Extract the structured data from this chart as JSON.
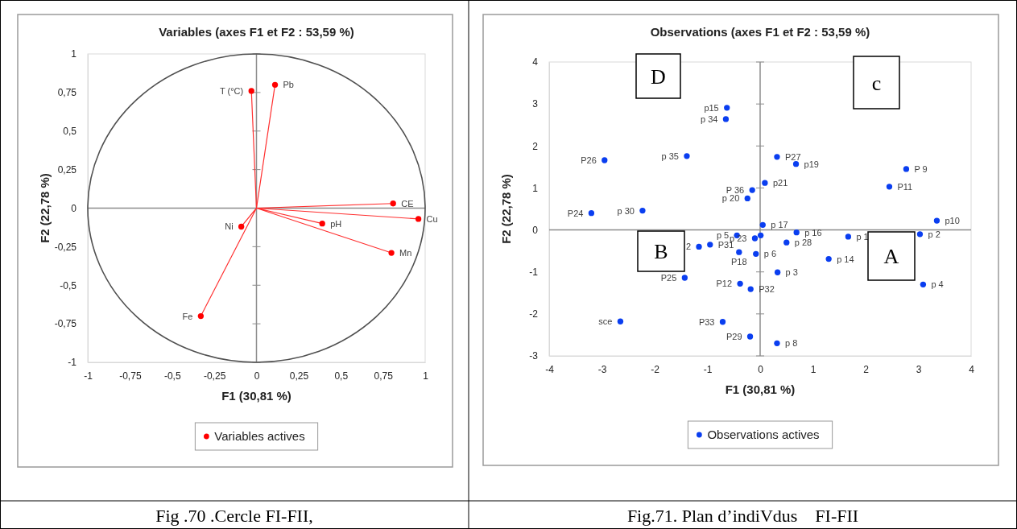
{
  "chart_data": [
    {
      "type": "scatter",
      "title": "Variables (axes F1 et F2 : 53,59 %)",
      "xlabel": "F1 (30,81 %)",
      "ylabel": "F2 (22,78 %)",
      "xlim": [
        -1,
        1
      ],
      "ylim": [
        -1,
        1
      ],
      "xticks": [
        -1,
        {
          "value": -0.75,
          "label": "-0,75"
        },
        {
          "value": -0.5,
          "label": "-0,5"
        },
        {
          "value": -0.25,
          "label": "-0,25"
        },
        0,
        {
          "value": 0.25,
          "label": "0,25"
        },
        {
          "value": 0.5,
          "label": "0,5"
        },
        {
          "value": 0.75,
          "label": "0,75"
        },
        1
      ],
      "yticks": [
        -1,
        {
          "value": -0.75,
          "label": "-0,75"
        },
        {
          "value": -0.5,
          "label": "-0,5"
        },
        {
          "value": -0.25,
          "label": "-0,25"
        },
        0,
        {
          "value": 0.25,
          "label": "0,25"
        },
        {
          "value": 0.5,
          "label": "0,5"
        },
        {
          "value": 0.75,
          "label": "0,75"
        },
        1
      ],
      "legend": "bottom",
      "marker": "circle",
      "series": [
        {
          "type": "line",
          "marker": "none",
          "color": "#ff3030",
          "x": [
            0,
            -0.03,
            null,
            0,
            0.11,
            null,
            0,
            0.81,
            null,
            0,
            0.96,
            null,
            0,
            0.39,
            null,
            0,
            0.8,
            null,
            0,
            -0.09,
            null,
            0,
            -0.33
          ],
          "values": [
            0,
            0.76,
            null,
            0,
            0.8,
            null,
            0,
            0.03,
            null,
            0,
            -0.07,
            null,
            0,
            -0.1,
            null,
            0,
            -0.29,
            null,
            0,
            -0.12,
            null,
            0,
            -0.7
          ]
        },
        {
          "name": "Variables actives",
          "color": "#ff0000",
          "x": [
            -0.03,
            0.11,
            0.81,
            0.96,
            0.39,
            0.8,
            -0.09,
            -0.33
          ],
          "values": [
            0.76,
            0.8,
            0.03,
            -0.07,
            -0.1,
            -0.29,
            -0.12,
            -0.7
          ]
        }
      ],
      "annotations": [
        {
          "text": "T (°C)",
          "x": -0.03,
          "y": 0.76
        },
        {
          "text": "Pb",
          "x": 0.11,
          "y": 0.8
        },
        {
          "text": "CE",
          "x": 0.81,
          "y": 0.03
        },
        {
          "text": "Cu",
          "x": 0.96,
          "y": -0.07
        },
        {
          "text": "pH",
          "x": 0.39,
          "y": -0.1
        },
        {
          "text": "Mn",
          "x": 0.8,
          "y": -0.29
        },
        {
          "text": "Ni",
          "x": -0.09,
          "y": -0.12
        },
        {
          "text": "Fe",
          "x": -0.33,
          "y": -0.7
        },
        "Fig .70 .Cercle FI-FII,"
      ]
    },
    {
      "type": "scatter",
      "title": "Observations (axes F1 et F2 : 53,59 %)",
      "xlabel": "F1 (30,81 %)",
      "ylabel": "F2 (22,78 %)",
      "xlim": [
        -4,
        4
      ],
      "ylim": [
        -3,
        4
      ],
      "xticks": [
        -4,
        -3,
        -2,
        -1,
        0,
        1,
        2,
        3,
        4
      ],
      "yticks": [
        -3,
        -2,
        -1,
        0,
        1,
        2,
        3,
        4
      ],
      "legend": "bottom",
      "marker": "circle",
      "series": [
        {
          "name": "Observations actives",
          "color": "#0a3ef0",
          "x": [
            -0.63,
            -0.65,
            -2.95,
            -1.39,
            -0.15,
            -0.24,
            -3.2,
            -2.23,
            -1.16,
            -0.95,
            -0.44,
            -0.1,
            0.01,
            -0.4,
            -0.08,
            -1.43,
            -0.38,
            -0.18,
            -2.65,
            -0.71,
            -0.19,
            0.32,
            0.68,
            2.77,
            2.45,
            0.09,
            3.35,
            0.05,
            0.69,
            1.67,
            3.03,
            0.5,
            1.3,
            0.33,
            3.09,
            0.32
          ],
          "values": [
            2.91,
            2.64,
            1.66,
            1.76,
            0.95,
            0.75,
            0.4,
            0.46,
            -0.4,
            -0.35,
            -0.13,
            -0.2,
            -0.13,
            -0.53,
            -0.57,
            -1.14,
            -1.28,
            -1.41,
            -2.18,
            -2.19,
            -2.54,
            1.74,
            1.57,
            1.45,
            1.03,
            1.12,
            0.22,
            0.12,
            -0.06,
            -0.16,
            -0.1,
            -0.3,
            -0.69,
            -1.01,
            -1.3,
            -2.7
          ]
        }
      ],
      "annotations": [
        {
          "text": "p15",
          "x": -0.63,
          "y": 2.91
        },
        {
          "text": "p 34",
          "x": -0.65,
          "y": 2.64
        },
        {
          "text": "P26",
          "x": -2.95,
          "y": 1.66
        },
        {
          "text": "p 35",
          "x": -1.39,
          "y": 1.76
        },
        {
          "text": "P 36",
          "x": -0.15,
          "y": 0.95
        },
        {
          "text": "p 20",
          "x": -0.24,
          "y": 0.75
        },
        {
          "text": "P24",
          "x": -3.2,
          "y": 0.4
        },
        {
          "text": "p 30",
          "x": -2.23,
          "y": 0.46
        },
        {
          "text": "2",
          "x": -1.16,
          "y": -0.4
        },
        {
          "text": "P31",
          "x": -0.95,
          "y": -0.35
        },
        {
          "text": "p 23",
          "x": -0.1,
          "y": -0.2
        },
        {
          "text": "p 5",
          "x": -0.44,
          "y": -0.13
        },
        {
          "text": "P18",
          "x": -0.4,
          "y": -0.53
        },
        {
          "text": "p 6",
          "x": -0.08,
          "y": -0.57
        },
        {
          "text": "P25",
          "x": -1.43,
          "y": -1.14
        },
        {
          "text": "P12",
          "x": -0.38,
          "y": -1.28
        },
        {
          "text": "P32",
          "x": -0.18,
          "y": -1.41
        },
        {
          "text": "sce",
          "x": -2.65,
          "y": -2.18
        },
        {
          "text": "P33",
          "x": -0.71,
          "y": -2.19
        },
        {
          "text": "P29",
          "x": -0.19,
          "y": -2.54
        },
        {
          "text": "P27",
          "x": 0.32,
          "y": 1.74
        },
        {
          "text": "p19",
          "x": 0.68,
          "y": 1.57
        },
        {
          "text": "P 9",
          "x": 2.77,
          "y": 1.45
        },
        {
          "text": "P11",
          "x": 2.45,
          "y": 1.03
        },
        {
          "text": "p21",
          "x": 0.09,
          "y": 1.12
        },
        {
          "text": "p10",
          "x": 3.35,
          "y": 0.22
        },
        {
          "text": "p 17",
          "x": 0.05,
          "y": 0.12
        },
        {
          "text": "p 16",
          "x": 0.69,
          "y": -0.06
        },
        {
          "text": "p 1",
          "x": 1.67,
          "y": -0.16
        },
        {
          "text": "p 2",
          "x": 3.03,
          "y": -0.1
        },
        {
          "text": "p 28",
          "x": 0.5,
          "y": -0.3
        },
        {
          "text": "p 14",
          "x": 1.3,
          "y": -0.69
        },
        {
          "text": "p 3",
          "x": 0.33,
          "y": -1.01
        },
        {
          "text": "p 4",
          "x": 3.09,
          "y": -1.3
        },
        {
          "text": "p 8",
          "x": 0.32,
          "y": -2.7
        },
        "D",
        "c",
        "B",
        "A",
        "Fig.71. Plan d’indiVdus    FI-FII"
      ]
    }
  ]
}
